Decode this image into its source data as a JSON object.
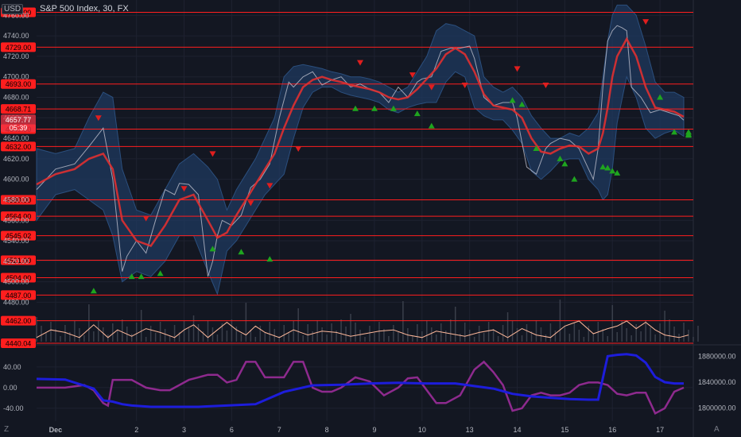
{
  "header": {
    "title": "S&P 500 Index, 30, FX",
    "currency": "USD"
  },
  "corner_left": "Z",
  "corner_right": "A",
  "colors": {
    "background": "#131722",
    "resistance": "#ff1e1e",
    "price_line": "#c9c9d6",
    "moving_average": "#e03030",
    "band_fill": "#1f3a5f",
    "signal_down": "#e01e1e",
    "signal_up": "#1fa51f",
    "oscillator": "#ffb89a",
    "lower_purple": "#8e2a8e",
    "lower_blue": "#1d1ddb"
  },
  "chart_data": [
    {
      "type": "line",
      "name": "price-panel",
      "title": "S&P 500 Index, 30, FX",
      "ylim": [
        4440,
        4775
      ],
      "y_ticks": [
        4480,
        4500,
        4520,
        4540,
        4560,
        4580,
        4600,
        4620,
        4640,
        4660,
        4680,
        4700,
        4720,
        4740,
        4760
      ],
      "y_tick_labels": [
        "4480.00",
        "4500.00",
        "4520.00",
        "4540.00",
        "4560.00",
        "4580.00",
        "4600.00",
        "4620.00",
        "4640.00",
        "4660.00",
        "4680.00",
        "4700.00",
        "4720.00",
        "4740.00",
        "4760.00"
      ],
      "x_tick_labels": [
        "Dec",
        "2",
        "3",
        "6",
        "7",
        "8",
        "9",
        "10",
        "13",
        "14",
        "15",
        "16",
        "17"
      ],
      "x_tick_positions": [
        4,
        21,
        31,
        41,
        51,
        61,
        71,
        81,
        91,
        101,
        111,
        121,
        131
      ],
      "x_range": [
        0,
        138
      ],
      "levels": [
        {
          "value": 4763.0,
          "label": "4763.00"
        },
        {
          "value": 4729.0,
          "label": "4729.00"
        },
        {
          "value": 4693.0,
          "label": "4693.00"
        },
        {
          "value": 4668.71,
          "label": "4668.71"
        },
        {
          "value": 4649.0,
          "label": "4649.00"
        },
        {
          "value": 4632.0,
          "label": "4632.00"
        },
        {
          "value": 4580.0,
          "label": "4580.00"
        },
        {
          "value": 4564.0,
          "label": "4564.00"
        },
        {
          "value": 4545.02,
          "label": "4545.02"
        },
        {
          "value": 4521.0,
          "label": "4521.00"
        },
        {
          "value": 4504.0,
          "label": "4504.00"
        },
        {
          "value": 4487.0,
          "label": "4487.00"
        },
        {
          "value": 4462.0,
          "label": "4462.00"
        },
        {
          "value": 4440.04,
          "label": "4440.04"
        }
      ],
      "current_price": {
        "value": 4657.77,
        "label": "4657.77",
        "countdown": "05:39"
      },
      "price": {
        "x": [
          0,
          4,
          8,
          11,
          14,
          16,
          18,
          19,
          21,
          23,
          25,
          27,
          29,
          30,
          32,
          34,
          36,
          37,
          38,
          39,
          41,
          43,
          45,
          47,
          49,
          51,
          53,
          54,
          56,
          58,
          60,
          62,
          64,
          66,
          68,
          70,
          72,
          74,
          76,
          78,
          80,
          81,
          83,
          85,
          87,
          89,
          91,
          92,
          94,
          96,
          98,
          100,
          101,
          103,
          105,
          107,
          108,
          110,
          112,
          114,
          116,
          117,
          118,
          119,
          120,
          121,
          122,
          123,
          124,
          125,
          127,
          129,
          131,
          133,
          135,
          136
        ],
        "y": [
          4590,
          4610,
          4615,
          4632,
          4650,
          4600,
          4510,
          4525,
          4540,
          4528,
          4560,
          4590,
          4585,
          4596,
          4595,
          4585,
          4505,
          4520,
          4545,
          4560,
          4555,
          4565,
          4592,
          4600,
          4615,
          4660,
          4695,
          4690,
          4700,
          4705,
          4692,
          4697,
          4700,
          4690,
          4693,
          4688,
          4685,
          4675,
          4690,
          4680,
          4695,
          4698,
          4700,
          4725,
          4728,
          4728,
          4730,
          4718,
          4680,
          4672,
          4675,
          4675,
          4660,
          4612,
          4605,
          4630,
          4635,
          4640,
          4638,
          4630,
          4610,
          4600,
          4630,
          4690,
          4735,
          4745,
          4750,
          4748,
          4745,
          4690,
          4680,
          4665,
          4668,
          4665,
          4662,
          4657.77
        ]
      },
      "moving_average": {
        "x": [
          0,
          4,
          8,
          11,
          14,
          16,
          18,
          21,
          24,
          27,
          30,
          33,
          36,
          38,
          40,
          42,
          44,
          46,
          48,
          50,
          52,
          54,
          56,
          58,
          60,
          62,
          64,
          66,
          68,
          70,
          72,
          74,
          76,
          78,
          80,
          82,
          84,
          86,
          88,
          90,
          92,
          94,
          96,
          98,
          100,
          102,
          104,
          106,
          108,
          110,
          112,
          114,
          116,
          118,
          119,
          120,
          121,
          122,
          124,
          126,
          128,
          130,
          132,
          134,
          136
        ],
        "y": [
          4595,
          4605,
          4610,
          4620,
          4625,
          4610,
          4560,
          4540,
          4535,
          4555,
          4580,
          4585,
          4560,
          4543,
          4548,
          4565,
          4580,
          4595,
          4610,
          4625,
          4650,
          4672,
          4690,
          4697,
          4700,
          4697,
          4695,
          4692,
          4690,
          4688,
          4685,
          4680,
          4678,
          4680,
          4688,
          4698,
          4708,
          4722,
          4728,
          4722,
          4705,
          4683,
          4672,
          4670,
          4668,
          4660,
          4640,
          4627,
          4625,
          4630,
          4633,
          4632,
          4625,
          4630,
          4645,
          4670,
          4700,
          4720,
          4737,
          4720,
          4690,
          4670,
          4668,
          4666,
          4661
        ]
      },
      "band": {
        "x": [
          0,
          4,
          8,
          11,
          14,
          16,
          18,
          21,
          24,
          27,
          30,
          33,
          36,
          38,
          40,
          42,
          44,
          46,
          48,
          50,
          52,
          54,
          56,
          58,
          60,
          62,
          64,
          66,
          68,
          70,
          72,
          74,
          76,
          78,
          80,
          82,
          84,
          86,
          88,
          90,
          92,
          94,
          96,
          98,
          100,
          102,
          104,
          106,
          108,
          110,
          112,
          114,
          116,
          118,
          119,
          120,
          121,
          122,
          124,
          126,
          128,
          130,
          132,
          134,
          136
        ],
        "upper": [
          4630,
          4625,
          4630,
          4660,
          4685,
          4680,
          4610,
          4570,
          4565,
          4590,
          4615,
          4625,
          4612,
          4600,
          4570,
          4590,
          4605,
          4620,
          4640,
          4660,
          4700,
          4710,
          4712,
          4710,
          4708,
          4705,
          4703,
          4700,
          4700,
          4698,
          4695,
          4690,
          4685,
          4690,
          4705,
          4720,
          4745,
          4752,
          4750,
          4745,
          4740,
          4700,
          4690,
          4685,
          4690,
          4680,
          4662,
          4650,
          4640,
          4640,
          4645,
          4642,
          4650,
          4665,
          4700,
          4735,
          4760,
          4770,
          4770,
          4760,
          4730,
          4695,
          4685,
          4685,
          4680
        ],
        "lower": [
          4560,
          4585,
          4590,
          4580,
          4570,
          4545,
          4500,
          4510,
          4505,
          4520,
          4545,
          4545,
          4510,
          4488,
          4530,
          4540,
          4555,
          4570,
          4585,
          4595,
          4605,
          4640,
          4670,
          4685,
          4690,
          4690,
          4685,
          4682,
          4680,
          4678,
          4675,
          4668,
          4665,
          4670,
          4673,
          4675,
          4675,
          4695,
          4705,
          4700,
          4670,
          4662,
          4658,
          4658,
          4648,
          4635,
          4608,
          4600,
          4608,
          4618,
          4620,
          4620,
          4600,
          4590,
          4580,
          4585,
          4610,
          4655,
          4700,
          4680,
          4650,
          4640,
          4645,
          4648,
          4642
        ]
      },
      "signals_down": [
        [
          13,
          4660
        ],
        [
          23,
          4562
        ],
        [
          31,
          4591
        ],
        [
          37,
          4625
        ],
        [
          45,
          4577
        ],
        [
          49,
          4594
        ],
        [
          55,
          4630
        ],
        [
          68,
          4714
        ],
        [
          79,
          4702
        ],
        [
          83,
          4690
        ],
        [
          90,
          4692
        ],
        [
          101,
          4708
        ],
        [
          107,
          4692
        ],
        [
          128,
          4754
        ]
      ],
      "signals_up": [
        [
          12,
          4491
        ],
        [
          20,
          4505
        ],
        [
          22,
          4505
        ],
        [
          26,
          4508
        ],
        [
          37,
          4532
        ],
        [
          43,
          4529
        ],
        [
          49,
          4522
        ],
        [
          67,
          4669
        ],
        [
          71,
          4669
        ],
        [
          75,
          4669
        ],
        [
          80,
          4664
        ],
        [
          83,
          4652
        ],
        [
          100,
          4677
        ],
        [
          102,
          4673
        ],
        [
          105,
          4630
        ],
        [
          110,
          4620
        ],
        [
          111,
          4615
        ],
        [
          113,
          4600
        ],
        [
          119,
          4612
        ],
        [
          120,
          4611
        ],
        [
          121,
          4608
        ],
        [
          122,
          4606
        ],
        [
          131,
          4680
        ],
        [
          134,
          4646
        ],
        [
          137,
          4646
        ],
        [
          139,
          4644
        ],
        [
          140,
          4643
        ]
      ],
      "oscillator_y_range": [
        0,
        100
      ],
      "oscillator": {
        "x": [
          0,
          3,
          6,
          9,
          12,
          15,
          17,
          20,
          23,
          26,
          29,
          31,
          33,
          36,
          38,
          40,
          42,
          44,
          46,
          48,
          51,
          54,
          57,
          60,
          63,
          66,
          69,
          72,
          75,
          78,
          81,
          84,
          87,
          90,
          93,
          96,
          99,
          102,
          105,
          108,
          111,
          114,
          117,
          120,
          122,
          124,
          126,
          128,
          130,
          132,
          135,
          137
        ],
        "y": [
          10,
          40,
          30,
          10,
          60,
          10,
          40,
          15,
          45,
          30,
          10,
          40,
          60,
          10,
          40,
          70,
          40,
          20,
          55,
          30,
          10,
          40,
          20,
          35,
          30,
          15,
          25,
          35,
          40,
          20,
          10,
          35,
          25,
          15,
          30,
          40,
          10,
          45,
          20,
          10,
          55,
          75,
          25,
          45,
          55,
          75,
          45,
          70,
          40,
          20,
          10,
          20
        ]
      }
    },
    {
      "type": "line",
      "name": "indicator-panel",
      "ylim": [
        -65,
        80
      ],
      "y_ticks": [
        -40,
        0,
        40
      ],
      "y_tick_labels": [
        "-40.00",
        "0.00",
        "40.00"
      ],
      "right_ylim": [
        1780000,
        1895000
      ],
      "right_y_ticks": [
        1800000,
        1840000,
        1880000
      ],
      "right_y_tick_labels": [
        "1800000.00",
        "1840000.00",
        "1880000.00"
      ],
      "series": [
        {
          "x": [
            0,
            6,
            10,
            12,
            14,
            15,
            16,
            18,
            20,
            23,
            26,
            28,
            30,
            32,
            34,
            36,
            38,
            40,
            42,
            44,
            46,
            48,
            50,
            52,
            54,
            56,
            58,
            60,
            62,
            64,
            67,
            70,
            73,
            76,
            78,
            80,
            82,
            84,
            86,
            89,
            92,
            94,
            96,
            98,
            100,
            102,
            104,
            106,
            108,
            110,
            112,
            114,
            116,
            118,
            120,
            122,
            124,
            126,
            128,
            130,
            132,
            134,
            136
          ],
          "y": [
            0,
            0,
            5,
            -5,
            -30,
            -35,
            15,
            15,
            15,
            0,
            -5,
            -5,
            5,
            15,
            20,
            25,
            25,
            10,
            15,
            50,
            50,
            20,
            20,
            20,
            50,
            50,
            0,
            -8,
            -8,
            0,
            20,
            12,
            -15,
            0,
            18,
            20,
            -5,
            -30,
            -30,
            -15,
            35,
            50,
            30,
            5,
            -45,
            -40,
            -15,
            -10,
            -15,
            -15,
            -10,
            5,
            10,
            10,
            5,
            -12,
            -15,
            -10,
            -10,
            -50,
            -40,
            -8,
            0
          ]
        },
        {
          "x": [
            0,
            6,
            12,
            14,
            16,
            18,
            20,
            24,
            28,
            34,
            40,
            46,
            52,
            58,
            64,
            70,
            76,
            82,
            88,
            92,
            96,
            100,
            104,
            108,
            112,
            116,
            118,
            120,
            122,
            124,
            126,
            128,
            130,
            132,
            134,
            136
          ],
          "right_y": [
            1845000,
            1844000,
            1830000,
            1812000,
            1810000,
            1806000,
            1804000,
            1802000,
            1802000,
            1802000,
            1804000,
            1806000,
            1825000,
            1835000,
            1836000,
            1838000,
            1839000,
            1838000,
            1838000,
            1834000,
            1830000,
            1822000,
            1818000,
            1816000,
            1814000,
            1813000,
            1813000,
            1880000,
            1882000,
            1883000,
            1881000,
            1870000,
            1848000,
            1840000,
            1838000,
            1838000
          ]
        }
      ]
    }
  ]
}
